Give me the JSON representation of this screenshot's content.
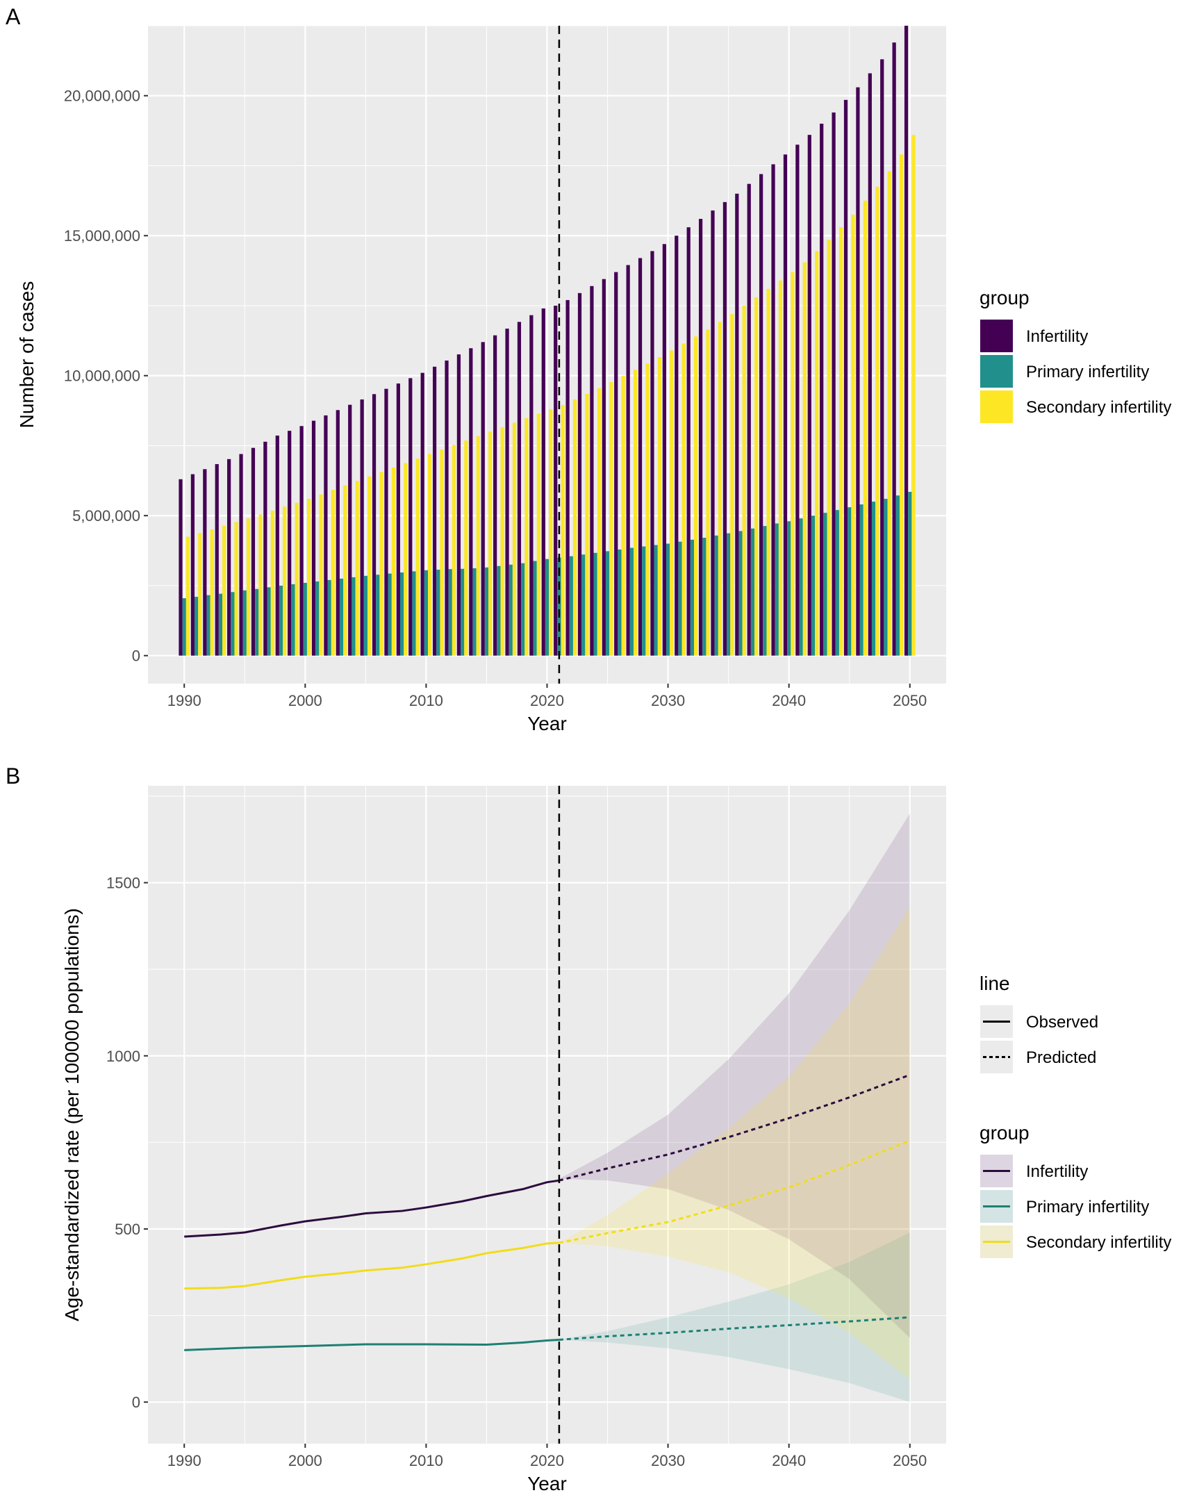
{
  "chart_data": [
    {
      "panel_label": "A",
      "type": "bar",
      "xlabel": "Year",
      "ylabel": "Number of cases",
      "ylim": [
        -1000000,
        22500000
      ],
      "xlim": [
        1987,
        2053
      ],
      "yticks": [
        0,
        5000000,
        10000000,
        15000000,
        20000000
      ],
      "ytick_labels": [
        "0",
        "5,000,000",
        "10,000,000",
        "15,000,000",
        "20,000,000"
      ],
      "xticks": [
        1990,
        2000,
        2010,
        2020,
        2030,
        2040,
        2050
      ],
      "xtick_labels": [
        "1990",
        "2000",
        "2010",
        "2020",
        "2030",
        "2040",
        "2050"
      ],
      "vline_year": 2021,
      "grid": true,
      "legend": {
        "title": "group",
        "placement": "right"
      },
      "years_start": 1990,
      "years_end": 2050,
      "value_unit": "millions",
      "series": [
        {
          "name": "Infertility",
          "color": "#440154",
          "values": [
            6.3,
            6.48,
            6.66,
            6.84,
            7.02,
            7.2,
            7.42,
            7.64,
            7.86,
            8.03,
            8.2,
            8.39,
            8.58,
            8.77,
            8.96,
            9.15,
            9.34,
            9.53,
            9.72,
            9.91,
            10.1,
            10.32,
            10.54,
            10.76,
            10.98,
            11.2,
            11.44,
            11.68,
            11.92,
            12.16,
            12.4,
            12.5,
            12.7,
            12.95,
            13.2,
            13.45,
            13.7,
            13.95,
            14.2,
            14.45,
            14.7,
            15.0,
            15.3,
            15.6,
            15.9,
            16.2,
            16.5,
            16.85,
            17.2,
            17.55,
            17.9,
            18.25,
            18.6,
            19.0,
            19.4,
            19.85,
            20.3,
            20.8,
            21.3,
            21.9,
            22.5
          ]
        },
        {
          "name": "Primary infertility",
          "color": "#21908C",
          "values": [
            2.05,
            2.1,
            2.16,
            2.21,
            2.27,
            2.33,
            2.38,
            2.44,
            2.5,
            2.55,
            2.6,
            2.65,
            2.7,
            2.75,
            2.8,
            2.85,
            2.89,
            2.93,
            2.97,
            3.01,
            3.05,
            3.07,
            3.09,
            3.1,
            3.12,
            3.15,
            3.2,
            3.25,
            3.3,
            3.38,
            3.45,
            3.5,
            3.55,
            3.61,
            3.67,
            3.73,
            3.79,
            3.85,
            3.9,
            3.95,
            4.0,
            4.07,
            4.14,
            4.21,
            4.29,
            4.37,
            4.45,
            4.54,
            4.63,
            4.72,
            4.8,
            4.9,
            5.0,
            5.1,
            5.2,
            5.3,
            5.4,
            5.5,
            5.6,
            5.72,
            5.85
          ]
        },
        {
          "name": "Secondary infertility",
          "color": "#FDE725",
          "values": [
            4.25,
            4.38,
            4.51,
            4.64,
            4.77,
            4.9,
            5.04,
            5.18,
            5.32,
            5.46,
            5.6,
            5.76,
            5.92,
            6.08,
            6.24,
            6.4,
            6.56,
            6.72,
            6.88,
            7.04,
            7.2,
            7.36,
            7.52,
            7.68,
            7.84,
            8.0,
            8.16,
            8.32,
            8.48,
            8.64,
            8.8,
            8.95,
            9.15,
            9.35,
            9.55,
            9.77,
            9.99,
            10.21,
            10.43,
            10.66,
            10.9,
            11.15,
            11.4,
            11.65,
            11.92,
            12.2,
            12.5,
            12.8,
            13.1,
            13.4,
            13.7,
            14.05,
            14.45,
            14.85,
            15.3,
            15.75,
            16.25,
            16.75,
            17.3,
            17.9,
            18.6
          ]
        }
      ]
    },
    {
      "panel_label": "B",
      "type": "line",
      "xlabel": "Year",
      "ylabel": "Age-standardized rate (per 100000 populations)",
      "ylim": [
        -120,
        1780
      ],
      "xlim": [
        1987,
        2053
      ],
      "yticks": [
        0,
        500,
        1000,
        1500
      ],
      "ytick_labels": [
        "0",
        "500",
        "1000",
        "1500"
      ],
      "xticks": [
        1990,
        2000,
        2010,
        2020,
        2030,
        2040,
        2050
      ],
      "xtick_labels": [
        "1990",
        "2000",
        "2010",
        "2020",
        "2030",
        "2040",
        "2050"
      ],
      "vline_year": 2021,
      "grid": true,
      "legend_line": {
        "title": "line",
        "items": [
          "Observed",
          "Predicted"
        ],
        "placement": "right"
      },
      "legend_group": {
        "title": "group",
        "items": [
          "Infertility",
          "Primary infertility",
          "Secondary infertility"
        ],
        "placement": "right"
      },
      "series": [
        {
          "name": "Infertility",
          "color": "#440154",
          "line_color": "#2D0B3E",
          "observed": {
            "x": [
              1990,
              1993,
              1995,
              1998,
              2000,
              2003,
              2005,
              2008,
              2010,
              2013,
              2015,
              2018,
              2020,
              2021
            ],
            "y": [
              478,
              484,
              490,
              510,
              522,
              535,
              545,
              552,
              562,
              580,
              595,
              615,
              635,
              640
            ]
          },
          "predicted": {
            "x": [
              2021,
              2025,
              2030,
              2035,
              2040,
              2045,
              2050
            ],
            "y": [
              640,
              675,
              715,
              765,
              820,
              880,
              945
            ]
          },
          "upper": [
            645,
            720,
            830,
            990,
            1180,
            1420,
            1700
          ],
          "lower": [
            645,
            640,
            615,
            555,
            470,
            355,
            185
          ]
        },
        {
          "name": "Primary infertility",
          "color": "#21908C",
          "line_color": "#1E7F74",
          "observed": {
            "x": [
              1990,
              1995,
              2000,
              2005,
              2010,
              2015,
              2018,
              2020,
              2021
            ],
            "y": [
              150,
              157,
              162,
              167,
              167,
              166,
              172,
              178,
              180
            ]
          },
          "predicted": {
            "x": [
              2021,
              2025,
              2030,
              2035,
              2040,
              2045,
              2050
            ],
            "y": [
              180,
              190,
              200,
              212,
              222,
              233,
              245
            ]
          },
          "upper": [
            180,
            205,
            245,
            290,
            340,
            405,
            490
          ],
          "lower": [
            180,
            172,
            155,
            130,
            95,
            55,
            0
          ]
        },
        {
          "name": "Secondary infertility",
          "color": "#FDE725",
          "line_color": "#F2DC1A",
          "observed": {
            "x": [
              1990,
              1993,
              1995,
              1998,
              2000,
              2003,
              2005,
              2008,
              2010,
              2013,
              2015,
              2018,
              2020,
              2021
            ],
            "y": [
              328,
              330,
              335,
              352,
              362,
              372,
              380,
              388,
              398,
              415,
              430,
              445,
              458,
              460
            ]
          },
          "predicted": {
            "x": [
              2021,
              2025,
              2030,
              2035,
              2040,
              2045,
              2050
            ],
            "y": [
              460,
              488,
              520,
              568,
              620,
              685,
              755
            ]
          },
          "upper": [
            460,
            540,
            660,
            790,
            940,
            1150,
            1430
          ],
          "lower": [
            460,
            450,
            420,
            375,
            300,
            200,
            65
          ]
        }
      ]
    }
  ]
}
